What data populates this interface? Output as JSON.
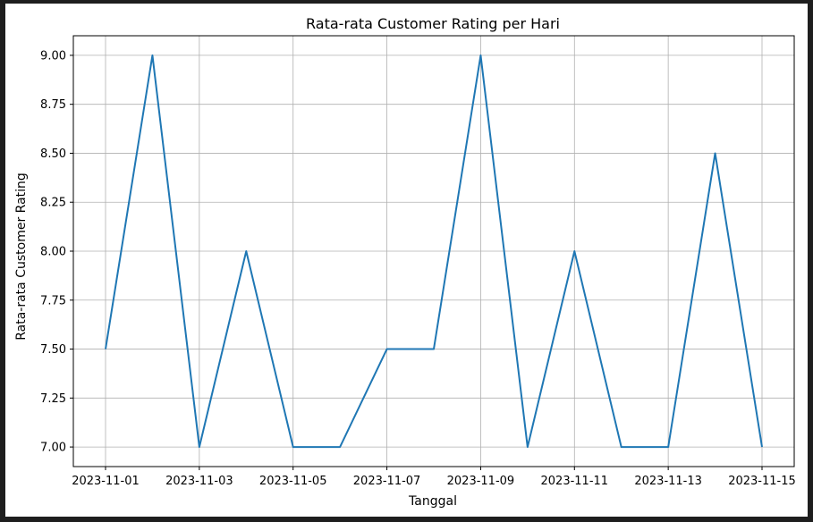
{
  "chart_data": {
    "type": "line",
    "title": "Rata-rata Customer Rating per Hari",
    "xlabel": "Tanggal",
    "ylabel": "Rata-rata Customer Rating",
    "x": [
      "2023-11-01",
      "2023-11-02",
      "2023-11-03",
      "2023-11-04",
      "2023-11-05",
      "2023-11-06",
      "2023-11-07",
      "2023-11-08",
      "2023-11-09",
      "2023-11-10",
      "2023-11-11",
      "2023-11-12",
      "2023-11-13",
      "2023-11-14",
      "2023-11-15"
    ],
    "series": [
      {
        "values": [
          7.5,
          9.0,
          7.0,
          8.0,
          7.0,
          7.0,
          7.5,
          7.5,
          9.0,
          7.0,
          8.0,
          7.0,
          7.0,
          8.5,
          7.0
        ],
        "color": "#1f77b4"
      }
    ],
    "xticks": [
      "2023-11-01",
      "2023-11-03",
      "2023-11-05",
      "2023-11-07",
      "2023-11-09",
      "2023-11-11",
      "2023-11-13",
      "2023-11-15"
    ],
    "yticks": [
      "7.00",
      "7.25",
      "7.50",
      "7.75",
      "8.00",
      "8.25",
      "8.50",
      "8.75",
      "9.00"
    ],
    "ylim": [
      6.9,
      9.1
    ],
    "grid": true,
    "legend": "none"
  }
}
